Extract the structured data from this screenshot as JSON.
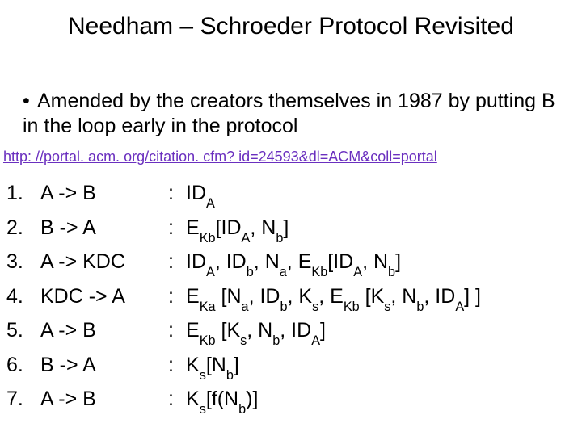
{
  "title": "Needham – Schroeder Protocol Revisited",
  "bullet": "Amended by the creators themselves in 1987 by putting B in the loop early in the protocol",
  "link_text": "http: //portal. acm. org/citation. cfm? id=24593&dl=ACM&coll=portal",
  "link_color": "#6a2fbf",
  "text_color": "#000000",
  "background_color": "#ffffff",
  "base_fontsize": 25,
  "title_fontsize": 30,
  "link_fontsize": 18,
  "steps": [
    {
      "n": "1.",
      "arrow": "A -> B",
      "msg_html": "ID<sub>A</sub>"
    },
    {
      "n": "2.",
      "arrow": "B -> A",
      "msg_html": "E<sub>Kb</sub>[ID<sub>A</sub>, N<sub>b</sub>]"
    },
    {
      "n": "3.",
      "arrow": "A -> KDC",
      "msg_html": "ID<sub>A</sub>, ID<sub>b</sub>, N<sub>a</sub>, E<sub>Kb</sub>[ID<sub>A</sub>, N<sub>b</sub>]"
    },
    {
      "n": "4.",
      "arrow": "KDC -> A",
      "msg_html": "E<sub>Ka</sub> [N<sub>a</sub>, ID<sub>b</sub>, K<sub>s</sub>, E<sub>Kb</sub> [K<sub>s</sub>, N<sub>b</sub>, ID<sub>A</sub>] ]"
    },
    {
      "n": "5.",
      "arrow": "A -> B",
      "msg_html": "E<sub>Kb</sub> [K<sub>s</sub>, N<sub>b</sub>, ID<sub>A</sub>]"
    },
    {
      "n": "6.",
      "arrow": "B -> A",
      "msg_html": "K<sub>s</sub>[N<sub>b</sub>]"
    },
    {
      "n": "7.",
      "arrow": "A -> B",
      "msg_html": "K<sub>s</sub>[f(N<sub>b</sub>)]"
    }
  ]
}
